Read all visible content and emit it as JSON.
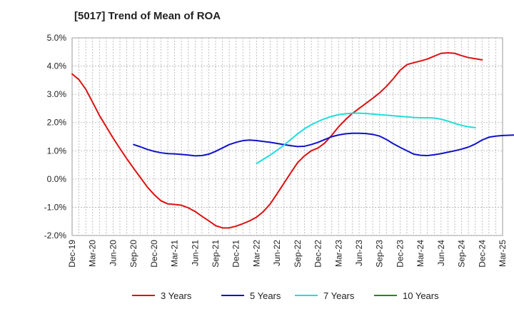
{
  "chart_data": {
    "type": "line",
    "title": "[5017]  Trend of Mean of ROA",
    "xlabel": "",
    "ylabel": "",
    "ylim": [
      -2.0,
      5.0
    ],
    "yticks": [
      "5.0%",
      "4.0%",
      "3.0%",
      "2.0%",
      "1.0%",
      "0.0%",
      "-1.0%",
      "-2.0%"
    ],
    "ytick_values": [
      5,
      4,
      3,
      2,
      1,
      0,
      -1,
      -2
    ],
    "xticks": [
      "Dec-19",
      "Mar-20",
      "Jun-20",
      "Sep-20",
      "Dec-20",
      "Mar-21",
      "Jun-21",
      "Sep-21",
      "Dec-21",
      "Mar-22",
      "Jun-22",
      "Sep-22",
      "Dec-22",
      "Mar-23",
      "Jun-23",
      "Sep-23",
      "Dec-23",
      "Mar-24",
      "Jun-24",
      "Sep-24",
      "Dec-24",
      "Mar-25"
    ],
    "grid": true,
    "legend_position": "bottom",
    "series": [
      {
        "name": "3 Years",
        "color": "#dd1111",
        "start_index": 0,
        "values": [
          3.72,
          3.52,
          3.18,
          2.72,
          2.25,
          1.85,
          1.45,
          1.08,
          0.72,
          0.38,
          0.05,
          -0.28,
          -0.55,
          -0.77,
          -0.88,
          -0.9,
          -0.93,
          -1.02,
          -1.15,
          -1.32,
          -1.48,
          -1.65,
          -1.73,
          -1.73,
          -1.67,
          -1.58,
          -1.48,
          -1.35,
          -1.15,
          -0.88,
          -0.52,
          -0.15,
          0.22,
          0.58,
          0.82,
          1.0,
          1.1,
          1.28,
          1.55,
          1.85,
          2.1,
          2.32,
          2.5,
          2.68,
          2.86,
          3.05,
          3.28,
          3.55,
          3.85,
          4.05,
          4.12,
          4.18,
          4.25,
          4.35,
          4.45,
          4.47,
          4.45,
          4.37,
          4.3,
          4.26,
          4.22
        ]
      },
      {
        "name": "5 Years",
        "color": "#1111cc",
        "start_index": 9,
        "values": [
          1.22,
          1.14,
          1.05,
          0.98,
          0.93,
          0.9,
          0.89,
          0.87,
          0.85,
          0.82,
          0.83,
          0.88,
          0.98,
          1.1,
          1.22,
          1.3,
          1.36,
          1.38,
          1.36,
          1.33,
          1.3,
          1.26,
          1.22,
          1.18,
          1.15,
          1.16,
          1.22,
          1.3,
          1.4,
          1.5,
          1.56,
          1.6,
          1.62,
          1.62,
          1.61,
          1.58,
          1.52,
          1.4,
          1.25,
          1.12,
          1.0,
          0.88,
          0.84,
          0.83,
          0.86,
          0.9,
          0.95,
          1.0,
          1.06,
          1.13,
          1.24,
          1.38,
          1.48,
          1.52,
          1.54,
          1.55,
          1.56
        ]
      },
      {
        "name": "7 Years",
        "color": "#22dddd",
        "start_index": 27,
        "values": [
          0.55,
          0.7,
          0.85,
          1.02,
          1.2,
          1.4,
          1.6,
          1.78,
          1.92,
          2.04,
          2.14,
          2.22,
          2.28,
          2.31,
          2.33,
          2.33,
          2.32,
          2.3,
          2.28,
          2.26,
          2.24,
          2.22,
          2.2,
          2.18,
          2.17,
          2.17,
          2.16,
          2.12,
          2.05,
          1.97,
          1.9,
          1.85,
          1.82
        ]
      },
      {
        "name": "10 Years",
        "color": "#228822",
        "start_index": 0,
        "values": []
      }
    ]
  }
}
